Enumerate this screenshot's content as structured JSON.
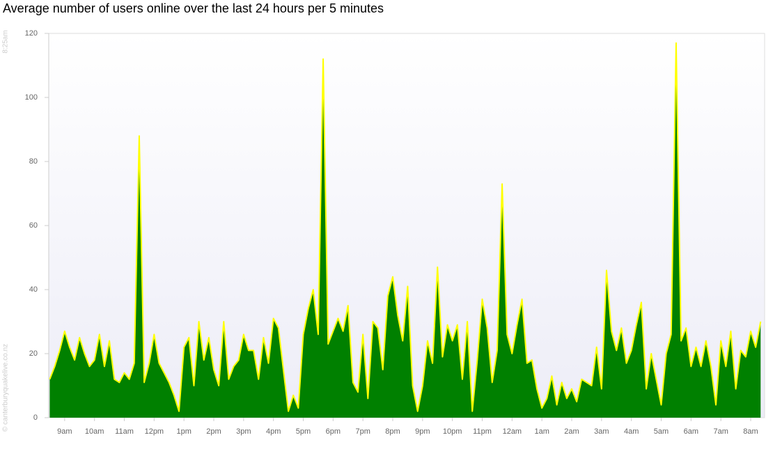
{
  "chart_data": {
    "type": "area",
    "title": "Average number of users online over the last 24 hours per 5 minutes",
    "side_labels": [
      "8:25am",
      "© canterburyquakelive.co.nz"
    ],
    "fill_color": "#008000",
    "line_color": "#ffff00",
    "xlim": [
      508,
      1948
    ],
    "ylim": [
      0,
      120
    ],
    "yticks": [
      0,
      20,
      40,
      60,
      80,
      100,
      120
    ],
    "xticks": [
      {
        "value": 540,
        "label": "9am"
      },
      {
        "value": 600,
        "label": "10am"
      },
      {
        "value": 660,
        "label": "11am"
      },
      {
        "value": 720,
        "label": "12pm"
      },
      {
        "value": 780,
        "label": "1pm"
      },
      {
        "value": 840,
        "label": "2pm"
      },
      {
        "value": 900,
        "label": "3pm"
      },
      {
        "value": 960,
        "label": "4pm"
      },
      {
        "value": 1020,
        "label": "5pm"
      },
      {
        "value": 1080,
        "label": "6pm"
      },
      {
        "value": 1140,
        "label": "7pm"
      },
      {
        "value": 1200,
        "label": "8pm"
      },
      {
        "value": 1260,
        "label": "9pm"
      },
      {
        "value": 1320,
        "label": "10pm"
      },
      {
        "value": 1380,
        "label": "11pm"
      },
      {
        "value": 1440,
        "label": "12am"
      },
      {
        "value": 1500,
        "label": "1am"
      },
      {
        "value": 1560,
        "label": "2am"
      },
      {
        "value": 1620,
        "label": "3am"
      },
      {
        "value": 1680,
        "label": "4am"
      },
      {
        "value": 1740,
        "label": "5am"
      },
      {
        "value": 1800,
        "label": "6am"
      },
      {
        "value": 1860,
        "label": "7am"
      },
      {
        "value": 1920,
        "label": "8am"
      }
    ],
    "x": [
      510,
      520,
      530,
      540,
      550,
      560,
      570,
      580,
      590,
      600,
      610,
      620,
      630,
      640,
      650,
      660,
      670,
      680,
      690,
      700,
      710,
      720,
      730,
      740,
      750,
      760,
      770,
      780,
      790,
      800,
      810,
      820,
      830,
      840,
      850,
      860,
      870,
      880,
      890,
      900,
      910,
      920,
      930,
      940,
      950,
      960,
      970,
      980,
      990,
      1000,
      1010,
      1020,
      1030,
      1040,
      1050,
      1060,
      1070,
      1080,
      1090,
      1100,
      1110,
      1120,
      1130,
      1140,
      1150,
      1160,
      1170,
      1180,
      1190,
      1200,
      1210,
      1220,
      1230,
      1240,
      1250,
      1260,
      1270,
      1280,
      1290,
      1300,
      1310,
      1320,
      1330,
      1340,
      1350,
      1360,
      1370,
      1380,
      1390,
      1400,
      1410,
      1420,
      1430,
      1440,
      1450,
      1460,
      1470,
      1480,
      1490,
      1500,
      1510,
      1520,
      1530,
      1540,
      1550,
      1560,
      1570,
      1580,
      1590,
      1600,
      1610,
      1620,
      1630,
      1640,
      1650,
      1660,
      1670,
      1680,
      1690,
      1700,
      1710,
      1720,
      1730,
      1740,
      1750,
      1760,
      1770,
      1780,
      1790,
      1800,
      1810,
      1820,
      1830,
      1840,
      1850,
      1860,
      1870,
      1880,
      1890,
      1900,
      1910,
      1920,
      1930,
      1940
    ],
    "values": [
      12,
      16,
      21,
      27,
      22,
      18,
      25,
      20,
      16,
      18,
      26,
      16,
      24,
      12,
      11,
      14,
      12,
      17,
      88,
      11,
      17,
      26,
      17,
      14,
      11,
      7,
      2,
      22,
      25,
      10,
      30,
      18,
      25,
      15,
      10,
      30,
      12,
      16,
      18,
      26,
      21,
      21,
      12,
      25,
      17,
      31,
      28,
      15,
      2,
      7,
      3,
      26,
      34,
      40,
      26,
      112,
      23,
      27,
      31,
      27,
      35,
      11,
      8,
      26,
      6,
      30,
      28,
      15,
      38,
      44,
      32,
      24,
      41,
      10,
      2,
      10,
      24,
      17,
      47,
      19,
      29,
      24,
      29,
      12,
      30,
      2,
      18,
      37,
      28,
      11,
      21,
      73,
      26,
      20,
      29,
      37,
      17,
      18,
      9,
      3,
      6,
      13,
      4,
      11,
      6,
      9,
      5,
      12,
      11,
      10,
      22,
      9,
      46,
      27,
      21,
      28,
      17,
      21,
      29,
      36,
      9,
      20,
      12,
      4,
      20,
      26,
      117,
      24,
      28,
      16,
      22,
      16,
      24,
      16,
      4,
      24,
      16,
      27,
      9,
      21,
      19,
      27,
      22,
      30
    ]
  }
}
